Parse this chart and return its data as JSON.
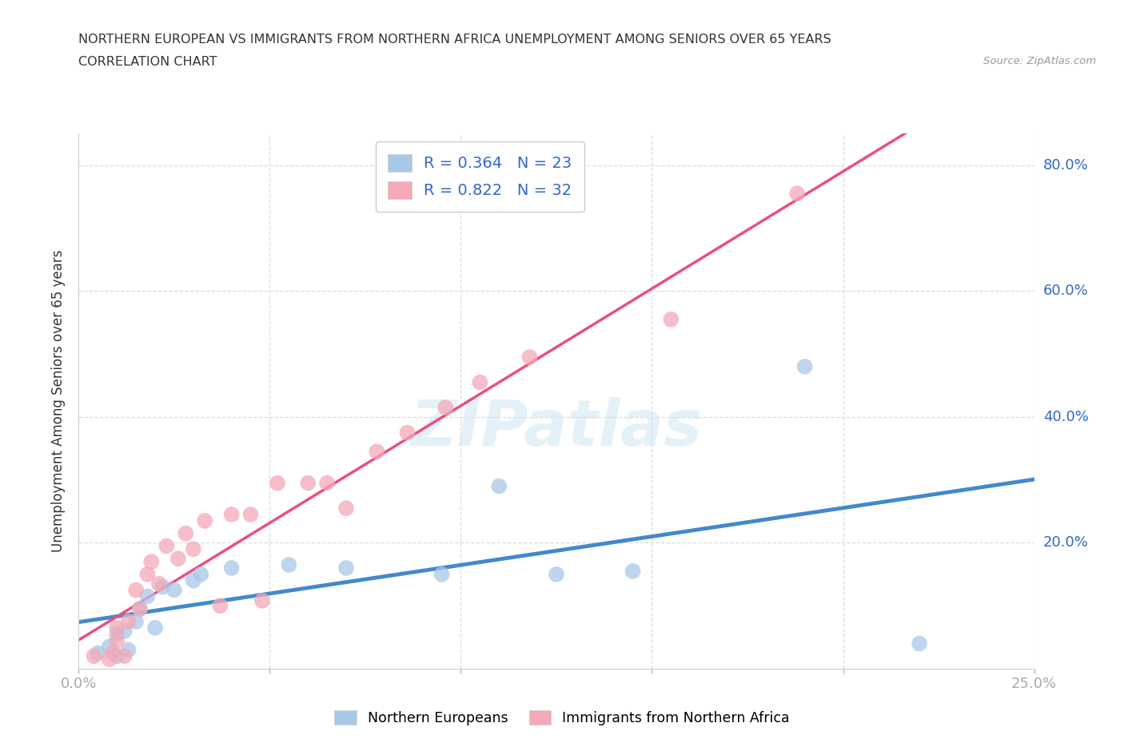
{
  "title_line1": "NORTHERN EUROPEAN VS IMMIGRANTS FROM NORTHERN AFRICA UNEMPLOYMENT AMONG SENIORS OVER 65 YEARS",
  "title_line2": "CORRELATION CHART",
  "source": "Source: ZipAtlas.com",
  "ylabel": "Unemployment Among Seniors over 65 years",
  "xlim": [
    0.0,
    0.25
  ],
  "ylim": [
    0.0,
    0.85
  ],
  "xticks": [
    0.0,
    0.05,
    0.1,
    0.15,
    0.2,
    0.25
  ],
  "xticklabels": [
    "0.0%",
    "",
    "",
    "",
    "",
    "25.0%"
  ],
  "yticks": [
    0.0,
    0.2,
    0.4,
    0.6,
    0.8
  ],
  "yticklabels": [
    "",
    "20.0%",
    "40.0%",
    "60.0%",
    "80.0%"
  ],
  "blue_color": "#a8c8e8",
  "pink_color": "#f4a8b8",
  "blue_line_color": "#4488cc",
  "pink_line_color": "#e85080",
  "R_blue": 0.364,
  "N_blue": 23,
  "R_pink": 0.822,
  "N_pink": 32,
  "watermark": "ZIPatlas",
  "blue_scatter_x": [
    0.005,
    0.008,
    0.01,
    0.01,
    0.012,
    0.013,
    0.015,
    0.016,
    0.018,
    0.02,
    0.022,
    0.025,
    0.03,
    0.032,
    0.04,
    0.055,
    0.07,
    0.095,
    0.11,
    0.125,
    0.145,
    0.19,
    0.22
  ],
  "blue_scatter_y": [
    0.025,
    0.035,
    0.02,
    0.055,
    0.06,
    0.03,
    0.075,
    0.095,
    0.115,
    0.065,
    0.13,
    0.125,
    0.14,
    0.15,
    0.16,
    0.165,
    0.16,
    0.15,
    0.29,
    0.15,
    0.155,
    0.48,
    0.04
  ],
  "pink_scatter_x": [
    0.004,
    0.008,
    0.009,
    0.01,
    0.01,
    0.012,
    0.013,
    0.015,
    0.016,
    0.018,
    0.019,
    0.021,
    0.023,
    0.026,
    0.028,
    0.03,
    0.033,
    0.037,
    0.04,
    0.045,
    0.048,
    0.052,
    0.06,
    0.065,
    0.07,
    0.078,
    0.086,
    0.096,
    0.105,
    0.118,
    0.155,
    0.188
  ],
  "pink_scatter_y": [
    0.02,
    0.015,
    0.025,
    0.045,
    0.065,
    0.02,
    0.075,
    0.125,
    0.095,
    0.15,
    0.17,
    0.135,
    0.195,
    0.175,
    0.215,
    0.19,
    0.235,
    0.1,
    0.245,
    0.245,
    0.108,
    0.295,
    0.295,
    0.295,
    0.255,
    0.345,
    0.375,
    0.415,
    0.455,
    0.495,
    0.555,
    0.755
  ],
  "grid_color": "#dddddd",
  "bg_color": "#ffffff",
  "legend_color": "#3366cc"
}
